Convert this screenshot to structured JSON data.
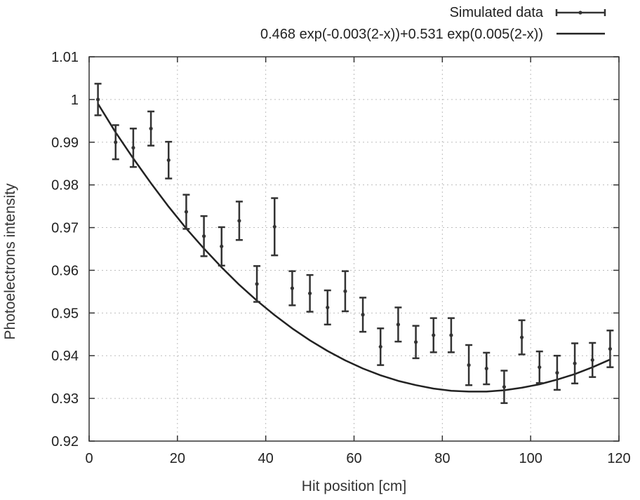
{
  "chart_data": {
    "type": "scatter",
    "xlabel": "Hit position [cm]",
    "ylabel": "Photoelectrons intensity",
    "xlim": [
      0,
      120
    ],
    "ylim": [
      0.92,
      1.01
    ],
    "xticks": [
      0,
      20,
      40,
      60,
      80,
      100,
      120
    ],
    "xtick_labels": [
      "0",
      "20",
      "40",
      "60",
      "80",
      "100",
      "120"
    ],
    "yticks": [
      0.92,
      0.93,
      0.94,
      0.95,
      0.96,
      0.97,
      0.98,
      0.99,
      1.0,
      1.01
    ],
    "ytick_labels": [
      "0.92",
      "0.93",
      "0.94",
      "0.95",
      "0.96",
      "0.97",
      "0.98",
      "0.99",
      "1",
      "1.01"
    ],
    "grid": true,
    "legend_position": "top-right",
    "series": [
      {
        "name": "Simulated data",
        "kind": "errorbar",
        "color": "#333333",
        "points": [
          {
            "x": 2,
            "y": 1.0,
            "err": 0.0037
          },
          {
            "x": 6,
            "y": 0.99,
            "err": 0.004
          },
          {
            "x": 10,
            "y": 0.9887,
            "err": 0.0045
          },
          {
            "x": 14,
            "y": 0.9932,
            "err": 0.004
          },
          {
            "x": 18,
            "y": 0.9858,
            "err": 0.0043
          },
          {
            "x": 22,
            "y": 0.9737,
            "err": 0.004
          },
          {
            "x": 26,
            "y": 0.968,
            "err": 0.0047
          },
          {
            "x": 30,
            "y": 0.9656,
            "err": 0.0045
          },
          {
            "x": 34,
            "y": 0.9716,
            "err": 0.0045
          },
          {
            "x": 38,
            "y": 0.9568,
            "err": 0.0042
          },
          {
            "x": 42,
            "y": 0.9702,
            "err": 0.0067
          },
          {
            "x": 46,
            "y": 0.9558,
            "err": 0.004
          },
          {
            "x": 50,
            "y": 0.9546,
            "err": 0.0043
          },
          {
            "x": 54,
            "y": 0.9513,
            "err": 0.004
          },
          {
            "x": 58,
            "y": 0.9551,
            "err": 0.0047
          },
          {
            "x": 62,
            "y": 0.9496,
            "err": 0.004
          },
          {
            "x": 66,
            "y": 0.9421,
            "err": 0.0043
          },
          {
            "x": 70,
            "y": 0.9473,
            "err": 0.004
          },
          {
            "x": 74,
            "y": 0.9432,
            "err": 0.0038
          },
          {
            "x": 78,
            "y": 0.9448,
            "err": 0.004
          },
          {
            "x": 82,
            "y": 0.9448,
            "err": 0.004
          },
          {
            "x": 86,
            "y": 0.9378,
            "err": 0.0047
          },
          {
            "x": 90,
            "y": 0.937,
            "err": 0.0037
          },
          {
            "x": 94,
            "y": 0.9327,
            "err": 0.0038
          },
          {
            "x": 98,
            "y": 0.9443,
            "err": 0.004
          },
          {
            "x": 102,
            "y": 0.9373,
            "err": 0.0037
          },
          {
            "x": 106,
            "y": 0.936,
            "err": 0.004
          },
          {
            "x": 110,
            "y": 0.9382,
            "err": 0.0047
          },
          {
            "x": 114,
            "y": 0.939,
            "err": 0.004
          },
          {
            "x": 118,
            "y": 0.9416,
            "err": 0.0043
          }
        ]
      },
      {
        "name": "0.468 exp(-0.003(2-x))+0.531 exp(0.005(2-x))",
        "kind": "line",
        "color": "#222222",
        "x": [
          2,
          6,
          10,
          14,
          18,
          22,
          26,
          30,
          34,
          38,
          42,
          46,
          50,
          54,
          58,
          62,
          66,
          70,
          74,
          78,
          82,
          86,
          90,
          94,
          98,
          102,
          106,
          110,
          114,
          118
        ],
        "y": [
          0.999,
          0.9923,
          0.9862,
          0.9804,
          0.9749,
          0.9698,
          0.9651,
          0.9607,
          0.9566,
          0.9529,
          0.9495,
          0.9464,
          0.9436,
          0.9411,
          0.9389,
          0.937,
          0.9354,
          0.9341,
          0.9331,
          0.9323,
          0.9318,
          0.9316,
          0.9316,
          0.9319,
          0.9325,
          0.9333,
          0.9344,
          0.9357,
          0.9373,
          0.9391
        ]
      }
    ]
  }
}
